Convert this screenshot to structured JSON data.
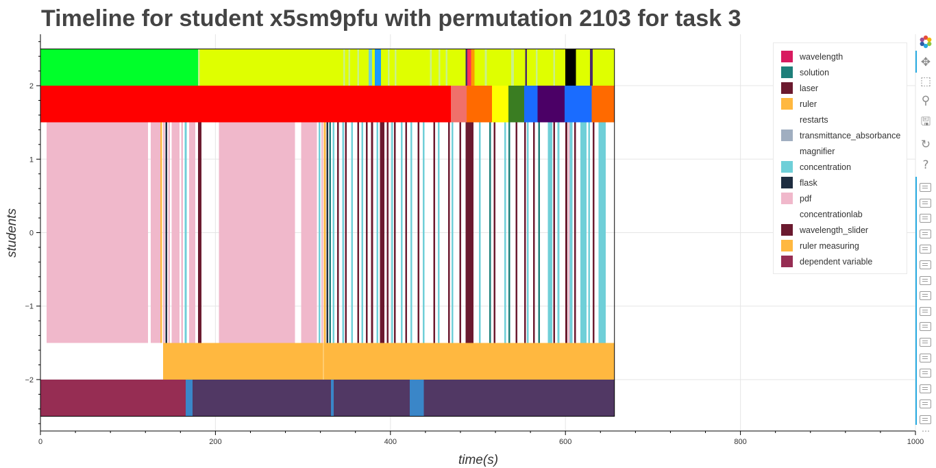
{
  "chart_data": {
    "type": "timeline",
    "title": "Timeline for student x5sm9pfu with permutation 2103 for task 3",
    "xlabel": "time(s)",
    "ylabel": "students",
    "xlim": [
      0,
      1000
    ],
    "ylim": [
      -2.7,
      2.7
    ],
    "x_ticks": [
      0,
      200,
      400,
      600,
      800,
      1000
    ],
    "y_ticks": [
      {
        "value": 2,
        "label": "2"
      },
      {
        "value": 1,
        "label": "1"
      },
      {
        "value": 0,
        "label": "0"
      },
      {
        "value": -1,
        "label": "−1"
      },
      {
        "value": -2,
        "label": "−2"
      }
    ],
    "grid": true,
    "legend_position": "top-right",
    "legend": [
      {
        "name": "wavelength",
        "color": "#d81b60"
      },
      {
        "name": "solution",
        "color": "#1e7f7a"
      },
      {
        "name": "laser",
        "color": "#6b1a2f"
      },
      {
        "name": "ruler",
        "color": "#ffb840"
      },
      {
        "name": "restarts",
        "color": "#ffffff"
      },
      {
        "name": "transmittance_absorbance",
        "color": "#a0aec0"
      },
      {
        "name": "magnifier",
        "color": "#ffffff"
      },
      {
        "name": "concentration",
        "color": "#6fcfd8"
      },
      {
        "name": "flask",
        "color": "#1e2d40"
      },
      {
        "name": "pdf",
        "color": "#f0b8cb"
      },
      {
        "name": "concentrationlab",
        "color": "#ffffff"
      },
      {
        "name": "wavelength_slider",
        "color": "#6b1a2f"
      },
      {
        "name": "ruler measuring",
        "color": "#ffb840"
      },
      {
        "name": "dependent variable",
        "color": "#962d53"
      }
    ],
    "rows": [
      {
        "y0": 2.0,
        "y1": 2.5,
        "segments": [
          {
            "start": 0,
            "end": 180,
            "color": "#00ff2a"
          },
          {
            "start": 180,
            "end": 182,
            "color": "#c8f08a"
          },
          {
            "start": 182,
            "end": 375,
            "color": "#dfff00"
          },
          {
            "start": 375,
            "end": 379,
            "color": "#6fcfd8"
          },
          {
            "start": 379,
            "end": 382,
            "color": "#dfff00"
          },
          {
            "start": 382,
            "end": 389,
            "color": "#1a9bff"
          },
          {
            "start": 389,
            "end": 486,
            "color": "#dfff00"
          },
          {
            "start": 486,
            "end": 488,
            "color": "#4b2a6b"
          },
          {
            "start": 488,
            "end": 492,
            "color": "#ff3355"
          },
          {
            "start": 492,
            "end": 496,
            "color": "#ff9900"
          },
          {
            "start": 496,
            "end": 600,
            "color": "#dfff00"
          },
          {
            "start": 600,
            "end": 612,
            "color": "#000000"
          },
          {
            "start": 612,
            "end": 628,
            "color": "#dfff00"
          },
          {
            "start": 628,
            "end": 631,
            "color": "#4b2a6b"
          },
          {
            "start": 631,
            "end": 656,
            "color": "#dfff00"
          },
          {
            "start": 346,
            "end": 348,
            "color": "#c8f08a"
          },
          {
            "start": 352,
            "end": 354,
            "color": "#c8f08a"
          },
          {
            "start": 362,
            "end": 364,
            "color": "#c8f08a"
          },
          {
            "start": 397,
            "end": 399,
            "color": "#c8f08a"
          },
          {
            "start": 405,
            "end": 407,
            "color": "#c8f08a"
          },
          {
            "start": 445,
            "end": 447,
            "color": "#c8f08a"
          },
          {
            "start": 455,
            "end": 457,
            "color": "#c8f08a"
          },
          {
            "start": 463,
            "end": 465,
            "color": "#c8f08a"
          },
          {
            "start": 508,
            "end": 510,
            "color": "#c8f08a"
          },
          {
            "start": 538,
            "end": 541,
            "color": "#c8f08a"
          },
          {
            "start": 554,
            "end": 556,
            "color": "#4b2a6b"
          },
          {
            "start": 566,
            "end": 568,
            "color": "#c8f08a"
          },
          {
            "start": 586,
            "end": 588,
            "color": "#c8f08a"
          }
        ]
      },
      {
        "y0": 1.5,
        "y1": 2.0,
        "segments": [
          {
            "start": 0,
            "end": 469,
            "color": "#ff0000"
          },
          {
            "start": 469,
            "end": 487,
            "color": "#f0706a"
          },
          {
            "start": 487,
            "end": 516,
            "color": "#ff6a00"
          },
          {
            "start": 516,
            "end": 535,
            "color": "#ffff00"
          },
          {
            "start": 535,
            "end": 553,
            "color": "#3a7d22"
          },
          {
            "start": 553,
            "end": 568,
            "color": "#1a6cff"
          },
          {
            "start": 568,
            "end": 599,
            "color": "#4b0066"
          },
          {
            "start": 599,
            "end": 630,
            "color": "#1a6cff"
          },
          {
            "start": 630,
            "end": 656,
            "color": "#ff6a00"
          }
        ]
      },
      {
        "y0": -1.5,
        "y1": 1.5,
        "segments": [
          {
            "start": 7,
            "end": 123,
            "color": "#f0b8cb"
          },
          {
            "start": 126,
            "end": 137,
            "color": "#f0b8cb"
          },
          {
            "start": 137,
            "end": 139,
            "color": "#ffb840"
          },
          {
            "start": 140,
            "end": 142,
            "color": "#f0b8cb"
          },
          {
            "start": 143,
            "end": 145,
            "color": "#1e2d40"
          },
          {
            "start": 146,
            "end": 148,
            "color": "#f0b8cb"
          },
          {
            "start": 150,
            "end": 159,
            "color": "#f0b8cb"
          },
          {
            "start": 161,
            "end": 163,
            "color": "#f0b8cb"
          },
          {
            "start": 165,
            "end": 167,
            "color": "#6fcfd8"
          },
          {
            "start": 170,
            "end": 177,
            "color": "#f0b8cb"
          },
          {
            "start": 180,
            "end": 184,
            "color": "#6b1a2f"
          },
          {
            "start": 204,
            "end": 291,
            "color": "#f0b8cb"
          },
          {
            "start": 298,
            "end": 316,
            "color": "#f0b8cb"
          },
          {
            "start": 318,
            "end": 320,
            "color": "#6fcfd8"
          },
          {
            "start": 321,
            "end": 323,
            "color": "#f0b8cb"
          },
          {
            "start": 324,
            "end": 326,
            "color": "#ffb840"
          },
          {
            "start": 327,
            "end": 329,
            "color": "#1e2d40"
          },
          {
            "start": 330,
            "end": 332,
            "color": "#1e7f7a"
          },
          {
            "start": 334,
            "end": 336,
            "color": "#6fcfd8"
          },
          {
            "start": 339,
            "end": 341,
            "color": "#6b1a2f"
          },
          {
            "start": 345,
            "end": 347,
            "color": "#6fcfd8"
          },
          {
            "start": 348,
            "end": 350,
            "color": "#6b1a2f"
          },
          {
            "start": 355,
            "end": 357,
            "color": "#6fcfd8"
          },
          {
            "start": 362,
            "end": 364,
            "color": "#6b1a2f"
          },
          {
            "start": 367,
            "end": 369,
            "color": "#6fcfd8"
          },
          {
            "start": 372,
            "end": 374,
            "color": "#6b1a2f"
          },
          {
            "start": 378,
            "end": 380,
            "color": "#6b1a2f"
          },
          {
            "start": 384,
            "end": 386,
            "color": "#6fcfd8"
          },
          {
            "start": 388,
            "end": 393,
            "color": "#6b1a2f"
          },
          {
            "start": 396,
            "end": 398,
            "color": "#6b1a2f"
          },
          {
            "start": 401,
            "end": 403,
            "color": "#6fcfd8"
          },
          {
            "start": 404,
            "end": 406,
            "color": "#6b1a2f"
          },
          {
            "start": 412,
            "end": 414,
            "color": "#6fcfd8"
          },
          {
            "start": 417,
            "end": 419,
            "color": "#6b1a2f"
          },
          {
            "start": 423,
            "end": 425,
            "color": "#6fcfd8"
          },
          {
            "start": 431,
            "end": 433,
            "color": "#6b1a2f"
          },
          {
            "start": 437,
            "end": 439,
            "color": "#6fcfd8"
          },
          {
            "start": 449,
            "end": 451,
            "color": "#6b1a2f"
          },
          {
            "start": 454,
            "end": 456,
            "color": "#6fcfd8"
          },
          {
            "start": 466,
            "end": 468,
            "color": "#6b1a2f"
          },
          {
            "start": 470,
            "end": 472,
            "color": "#6fcfd8"
          },
          {
            "start": 479,
            "end": 481,
            "color": "#6b1a2f"
          },
          {
            "start": 486,
            "end": 495,
            "color": "#6b1a2f"
          },
          {
            "start": 501,
            "end": 503,
            "color": "#6fcfd8"
          },
          {
            "start": 513,
            "end": 515,
            "color": "#1e7f7a"
          },
          {
            "start": 518,
            "end": 520,
            "color": "#6b1a2f"
          },
          {
            "start": 530,
            "end": 532,
            "color": "#6fcfd8"
          },
          {
            "start": 535,
            "end": 537,
            "color": "#1e7f7a"
          },
          {
            "start": 543,
            "end": 545,
            "color": "#6b1a2f"
          },
          {
            "start": 553,
            "end": 555,
            "color": "#6b1a2f"
          },
          {
            "start": 556,
            "end": 558,
            "color": "#6fcfd8"
          },
          {
            "start": 563,
            "end": 565,
            "color": "#6b1a2f"
          },
          {
            "start": 569,
            "end": 571,
            "color": "#1e7f7a"
          },
          {
            "start": 580,
            "end": 585,
            "color": "#6fcfd8"
          },
          {
            "start": 586,
            "end": 588,
            "color": "#6b1a2f"
          },
          {
            "start": 591,
            "end": 593,
            "color": "#6fcfd8"
          },
          {
            "start": 600,
            "end": 602,
            "color": "#6b1a2f"
          },
          {
            "start": 603,
            "end": 605,
            "color": "#f0b8cb"
          },
          {
            "start": 605,
            "end": 608,
            "color": "#6fcfd8"
          },
          {
            "start": 610,
            "end": 612,
            "color": "#6b1a2f"
          },
          {
            "start": 617,
            "end": 624,
            "color": "#6fcfd8"
          },
          {
            "start": 626,
            "end": 628,
            "color": "#6fcfd8"
          },
          {
            "start": 631,
            "end": 633,
            "color": "#6b1a2f"
          },
          {
            "start": 638,
            "end": 646,
            "color": "#6fcfd8"
          }
        ]
      },
      {
        "y0": -2.0,
        "y1": -1.5,
        "segments": [
          {
            "start": 140,
            "end": 323,
            "color": "#ffb840"
          },
          {
            "start": 323,
            "end": 324,
            "color": "#ffe0a0"
          },
          {
            "start": 324,
            "end": 656,
            "color": "#ffb840"
          }
        ]
      },
      {
        "y0": -2.5,
        "y1": -2.0,
        "segments": [
          {
            "start": 0,
            "end": 166,
            "color": "#962d53"
          },
          {
            "start": 166,
            "end": 174,
            "color": "#3a86c8"
          },
          {
            "start": 174,
            "end": 332,
            "color": "#513864"
          },
          {
            "start": 332,
            "end": 335,
            "color": "#3a86c8"
          },
          {
            "start": 335,
            "end": 422,
            "color": "#513864"
          },
          {
            "start": 422,
            "end": 438,
            "color": "#3a86c8"
          },
          {
            "start": 438,
            "end": 656,
            "color": "#513864"
          }
        ]
      }
    ]
  },
  "toolbar": {
    "tools": [
      {
        "icon": "bokeh-logo-icon"
      },
      {
        "icon": "pan-icon",
        "glyph": "✥"
      },
      {
        "icon": "box-zoom-icon",
        "glyph": "⬚"
      },
      {
        "icon": "wheel-zoom-icon",
        "glyph": "⚲"
      },
      {
        "icon": "save-icon",
        "glyph": "🖫"
      },
      {
        "icon": "reset-icon",
        "glyph": "↻"
      },
      {
        "icon": "help-icon",
        "glyph": "?"
      }
    ],
    "hover_tool_count": 16,
    "overflow": "⋯"
  }
}
